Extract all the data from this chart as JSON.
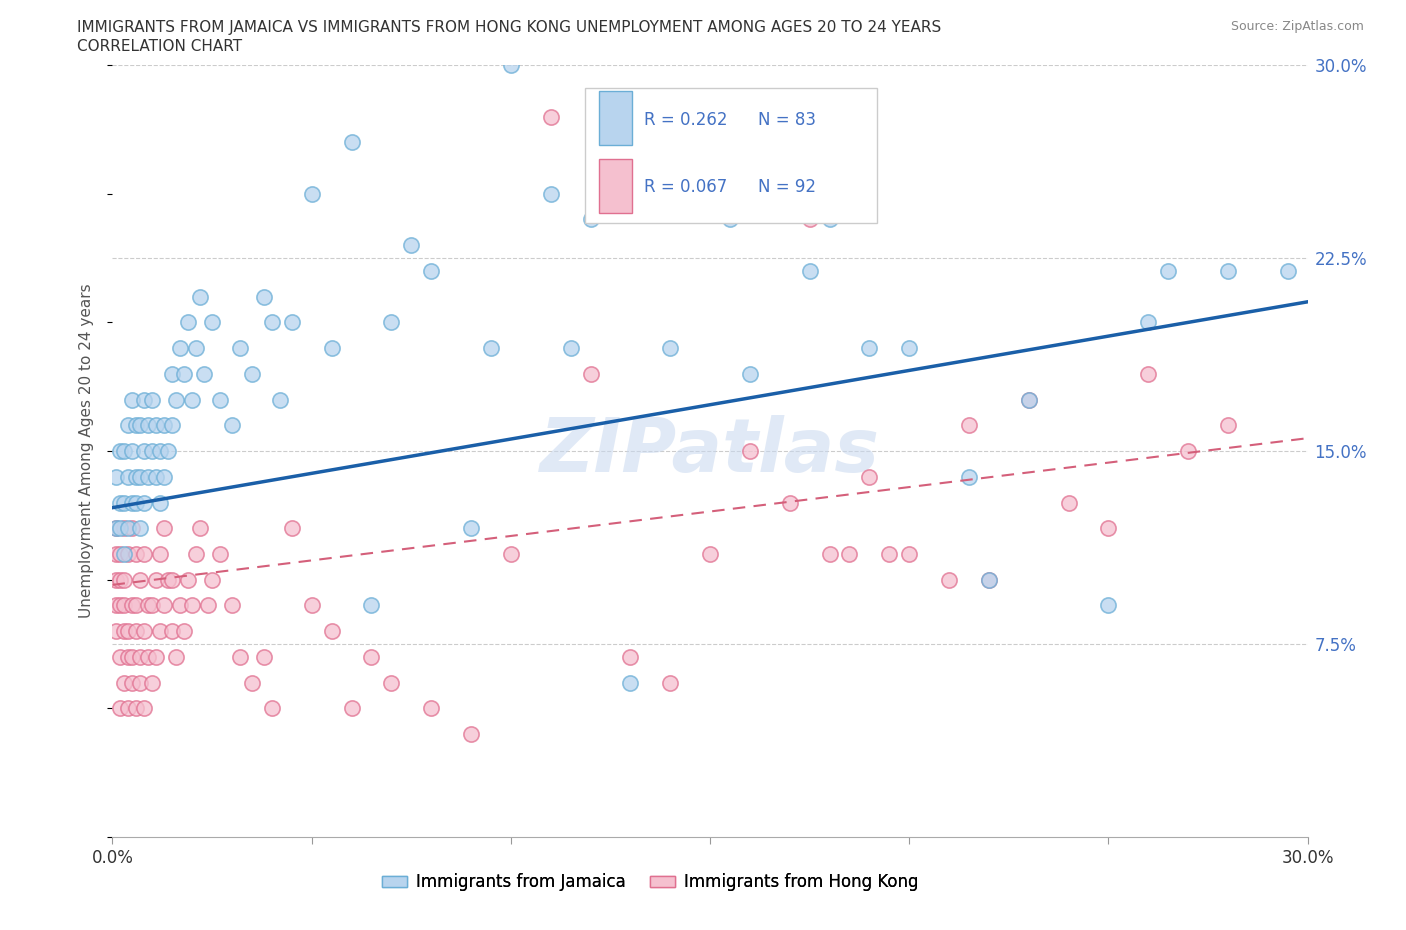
{
  "title_line1": "IMMIGRANTS FROM JAMAICA VS IMMIGRANTS FROM HONG KONG UNEMPLOYMENT AMONG AGES 20 TO 24 YEARS",
  "title_line2": "CORRELATION CHART",
  "source_text": "Source: ZipAtlas.com",
  "ylabel": "Unemployment Among Ages 20 to 24 years",
  "xmin": 0.0,
  "xmax": 0.3,
  "ymin": 0.0,
  "ymax": 0.3,
  "right_yticks": [
    0.075,
    0.15,
    0.225,
    0.3
  ],
  "right_yticklabels": [
    "7.5%",
    "15.0%",
    "22.5%",
    "30.0%"
  ],
  "jamaica_color": "#b8d4ee",
  "hongkong_color": "#f5c0cf",
  "jamaica_edge_color": "#6baed6",
  "hongkong_edge_color": "#e07090",
  "trend_jamaica_color": "#1a5fa8",
  "trend_hongkong_color": "#d45f7a",
  "legend_r_jamaica": "R = 0.262",
  "legend_n_jamaica": "N = 83",
  "legend_r_hongkong": "R = 0.067",
  "legend_n_hongkong": "N = 92",
  "legend_color_blue": "#4472c4",
  "watermark": "ZIPatlas",
  "jamaica_trend_x0": 0.0,
  "jamaica_trend_y0": 0.128,
  "jamaica_trend_x1": 0.3,
  "jamaica_trend_y1": 0.208,
  "hk_trend_x0": 0.0,
  "hk_trend_y0": 0.098,
  "hk_trend_x1": 0.3,
  "hk_trend_y1": 0.155,
  "jamaica_x": [
    0.001,
    0.001,
    0.002,
    0.002,
    0.002,
    0.003,
    0.003,
    0.003,
    0.004,
    0.004,
    0.004,
    0.005,
    0.005,
    0.005,
    0.006,
    0.006,
    0.006,
    0.007,
    0.007,
    0.007,
    0.008,
    0.008,
    0.008,
    0.009,
    0.009,
    0.01,
    0.01,
    0.011,
    0.011,
    0.012,
    0.012,
    0.013,
    0.013,
    0.014,
    0.015,
    0.015,
    0.016,
    0.017,
    0.018,
    0.019,
    0.02,
    0.021,
    0.022,
    0.023,
    0.025,
    0.027,
    0.03,
    0.032,
    0.035,
    0.038,
    0.04,
    0.042,
    0.045,
    0.05,
    0.055,
    0.06,
    0.065,
    0.07,
    0.075,
    0.08,
    0.09,
    0.095,
    0.1,
    0.11,
    0.115,
    0.12,
    0.13,
    0.135,
    0.14,
    0.155,
    0.16,
    0.175,
    0.18,
    0.19,
    0.2,
    0.215,
    0.22,
    0.23,
    0.25,
    0.26,
    0.265,
    0.28,
    0.295
  ],
  "jamaica_y": [
    0.12,
    0.14,
    0.12,
    0.13,
    0.15,
    0.11,
    0.13,
    0.15,
    0.12,
    0.14,
    0.16,
    0.13,
    0.15,
    0.17,
    0.14,
    0.16,
    0.13,
    0.12,
    0.14,
    0.16,
    0.13,
    0.15,
    0.17,
    0.14,
    0.16,
    0.15,
    0.17,
    0.14,
    0.16,
    0.13,
    0.15,
    0.14,
    0.16,
    0.15,
    0.16,
    0.18,
    0.17,
    0.19,
    0.18,
    0.2,
    0.17,
    0.19,
    0.21,
    0.18,
    0.2,
    0.17,
    0.16,
    0.19,
    0.18,
    0.21,
    0.2,
    0.17,
    0.2,
    0.25,
    0.19,
    0.27,
    0.09,
    0.2,
    0.23,
    0.22,
    0.12,
    0.19,
    0.3,
    0.25,
    0.19,
    0.24,
    0.06,
    0.25,
    0.19,
    0.24,
    0.18,
    0.22,
    0.24,
    0.19,
    0.19,
    0.14,
    0.1,
    0.17,
    0.09,
    0.2,
    0.22,
    0.22,
    0.22
  ],
  "hongkong_x": [
    0.001,
    0.001,
    0.001,
    0.001,
    0.001,
    0.002,
    0.002,
    0.002,
    0.002,
    0.002,
    0.003,
    0.003,
    0.003,
    0.003,
    0.003,
    0.004,
    0.004,
    0.004,
    0.004,
    0.005,
    0.005,
    0.005,
    0.005,
    0.006,
    0.006,
    0.006,
    0.006,
    0.007,
    0.007,
    0.007,
    0.008,
    0.008,
    0.008,
    0.009,
    0.009,
    0.01,
    0.01,
    0.011,
    0.011,
    0.012,
    0.012,
    0.013,
    0.013,
    0.014,
    0.015,
    0.015,
    0.016,
    0.017,
    0.018,
    0.019,
    0.02,
    0.021,
    0.022,
    0.024,
    0.025,
    0.027,
    0.03,
    0.032,
    0.035,
    0.038,
    0.04,
    0.045,
    0.05,
    0.055,
    0.06,
    0.065,
    0.07,
    0.08,
    0.09,
    0.1,
    0.11,
    0.12,
    0.13,
    0.14,
    0.15,
    0.16,
    0.17,
    0.175,
    0.18,
    0.185,
    0.19,
    0.195,
    0.2,
    0.21,
    0.215,
    0.22,
    0.23,
    0.24,
    0.25,
    0.26,
    0.27,
    0.28
  ],
  "hongkong_y": [
    0.1,
    0.12,
    0.09,
    0.08,
    0.11,
    0.05,
    0.09,
    0.11,
    0.07,
    0.1,
    0.06,
    0.09,
    0.12,
    0.08,
    0.1,
    0.05,
    0.08,
    0.11,
    0.07,
    0.07,
    0.09,
    0.12,
    0.06,
    0.08,
    0.11,
    0.05,
    0.09,
    0.07,
    0.1,
    0.06,
    0.08,
    0.11,
    0.05,
    0.09,
    0.07,
    0.06,
    0.09,
    0.07,
    0.1,
    0.08,
    0.11,
    0.09,
    0.12,
    0.1,
    0.08,
    0.1,
    0.07,
    0.09,
    0.08,
    0.1,
    0.09,
    0.11,
    0.12,
    0.09,
    0.1,
    0.11,
    0.09,
    0.07,
    0.06,
    0.07,
    0.05,
    0.12,
    0.09,
    0.08,
    0.05,
    0.07,
    0.06,
    0.05,
    0.04,
    0.11,
    0.28,
    0.18,
    0.07,
    0.06,
    0.11,
    0.15,
    0.13,
    0.24,
    0.11,
    0.11,
    0.14,
    0.11,
    0.11,
    0.1,
    0.16,
    0.1,
    0.17,
    0.13,
    0.12,
    0.18,
    0.15,
    0.16
  ]
}
